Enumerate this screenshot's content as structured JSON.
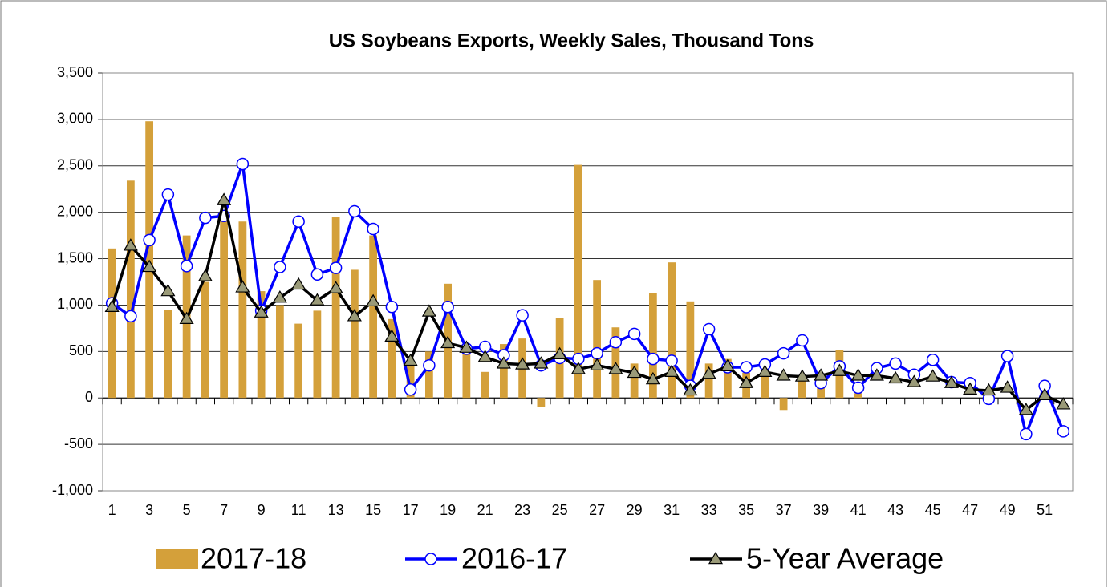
{
  "chart_data": {
    "type": "bar-line",
    "title": "US Soybeans  Exports, Weekly Sales, Thousand Tons",
    "categories": [
      1,
      null,
      3,
      null,
      5,
      null,
      7,
      null,
      9,
      null,
      11,
      null,
      13,
      null,
      15,
      null,
      17,
      null,
      19,
      null,
      21,
      null,
      23,
      null,
      25,
      null,
      27,
      null,
      29,
      null,
      31,
      null,
      33,
      null,
      35,
      null,
      37,
      null,
      39,
      null,
      41,
      null,
      43,
      null,
      45,
      null,
      47,
      null,
      49,
      null,
      51,
      null
    ],
    "ylim": [
      -1000,
      3500
    ],
    "yticks": [
      {
        "value": -1000,
        "label": "-1,000"
      },
      -500,
      0,
      500,
      {
        "value": 1000,
        "label": "1,000"
      },
      {
        "value": 1500,
        "label": "1,500"
      },
      {
        "value": 2000,
        "label": "2,000"
      },
      {
        "value": 2500,
        "label": "2,500"
      },
      {
        "value": 3000,
        "label": "3,000"
      },
      {
        "value": 3500,
        "label": "3,500"
      }
    ],
    "grid": true,
    "legend": "bottom",
    "series": [
      {
        "name": "2017-18",
        "type": "bar",
        "color": "#d4a03a",
        "values": [
          1610,
          2340,
          2980,
          950,
          1750,
          1250,
          1950,
          1900,
          1150,
          1000,
          800,
          940,
          1950,
          1380,
          1750,
          850,
          350,
          500,
          1230,
          540,
          280,
          580,
          640,
          -100,
          860,
          2510,
          1270,
          760,
          370,
          1130,
          1460,
          1040,
          370,
          420,
          270,
          320,
          -130,
          230,
          150,
          520,
          50,
          null,
          null,
          null,
          null,
          null,
          null,
          null,
          null,
          null,
          null,
          null
        ]
      },
      {
        "name": "2016-17",
        "type": "line",
        "color": "#0000ff",
        "marker": "circle",
        "marker_fill": "#ffffff",
        "values": [
          1020,
          880,
          1700,
          2190,
          1420,
          1940,
          1960,
          2520,
          940,
          1410,
          1900,
          1330,
          1400,
          2010,
          1820,
          980,
          90,
          350,
          980,
          530,
          550,
          460,
          890,
          350,
          430,
          420,
          480,
          600,
          690,
          420,
          400,
          130,
          740,
          330,
          330,
          360,
          480,
          620,
          160,
          340,
          110,
          320,
          370,
          250,
          410,
          170,
          160,
          -10,
          450,
          -390,
          130,
          -360
        ]
      },
      {
        "name": "5-Year Average",
        "type": "line",
        "color": "#000000",
        "marker": "triangle",
        "marker_fill": "#9a9a78",
        "values": [
          980,
          1640,
          1410,
          1150,
          850,
          1310,
          2130,
          1190,
          920,
          1080,
          1220,
          1050,
          1180,
          880,
          1040,
          660,
          400,
          930,
          590,
          540,
          440,
          370,
          360,
          370,
          470,
          310,
          350,
          310,
          270,
          200,
          280,
          80,
          260,
          340,
          160,
          280,
          240,
          230,
          240,
          290,
          240,
          240,
          210,
          170,
          230,
          160,
          90,
          80,
          110,
          -130,
          30,
          -70
        ]
      }
    ]
  }
}
